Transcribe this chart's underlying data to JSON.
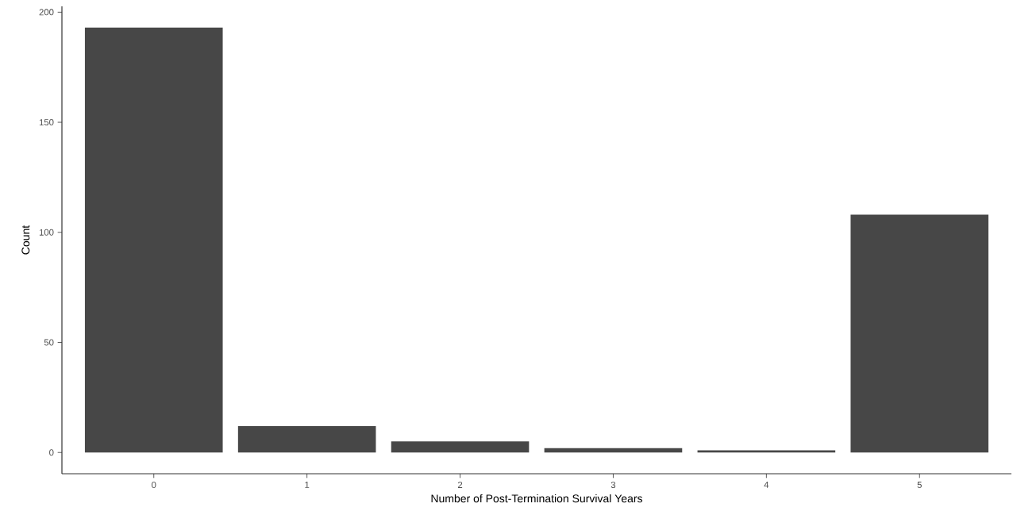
{
  "chart_data": {
    "type": "bar",
    "xlabel": "Number of Post-Termination Survival Years",
    "ylabel": "Count",
    "categories": [
      "0",
      "1",
      "2",
      "3",
      "4",
      "5"
    ],
    "values": [
      193,
      12,
      5,
      2,
      1,
      108
    ],
    "color": "#474747",
    "ylim": [
      -9.65,
      202.65
    ],
    "yticks": [
      0,
      50,
      100,
      150,
      200
    ],
    "grid": false
  }
}
